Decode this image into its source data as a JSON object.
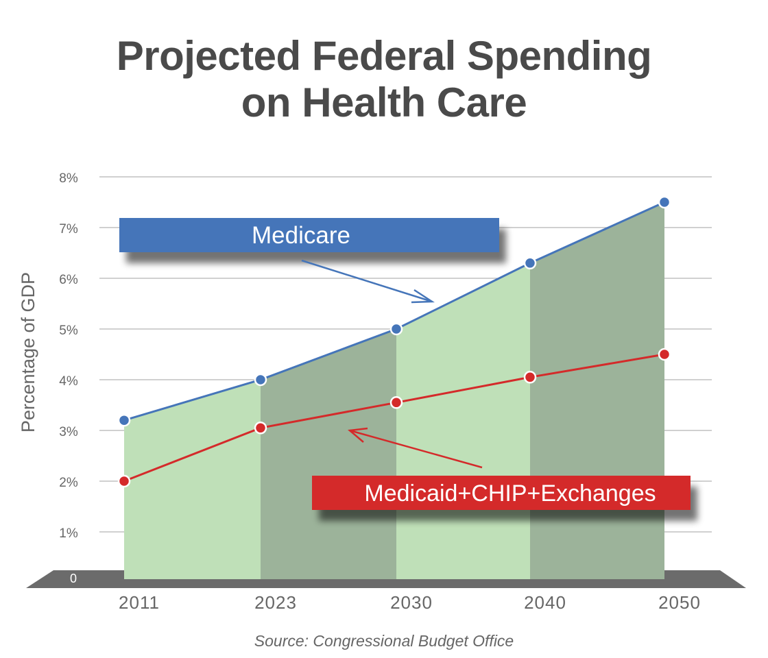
{
  "title_line1": "Projected Federal Spending",
  "title_line2": "on Health Care",
  "source": "Source: Congressional Budget Office",
  "chart_data": {
    "type": "area",
    "title": "Projected Federal Spending on Health Care",
    "ylabel": "Percentage of GDP",
    "xlabel": "",
    "categories": [
      "2011",
      "2023",
      "2030",
      "2040",
      "2050"
    ],
    "ylim": [
      0,
      8
    ],
    "y_ticks": [
      {
        "value": 0,
        "label": "0"
      },
      {
        "value": 1,
        "label": "1%"
      },
      {
        "value": 2,
        "label": "2%"
      },
      {
        "value": 3,
        "label": "3%"
      },
      {
        "value": 4,
        "label": "4%"
      },
      {
        "value": 5,
        "label": "5%"
      },
      {
        "value": 6,
        "label": "6%"
      },
      {
        "value": 7,
        "label": "7%"
      },
      {
        "value": 8,
        "label": "8%"
      }
    ],
    "grid": true,
    "series": [
      {
        "name": "Medicare",
        "values": [
          3.2,
          4.0,
          5.0,
          6.3,
          7.5
        ],
        "color": "#4575b9"
      },
      {
        "name": "Medicaid+CHIP+Exchanges",
        "values": [
          2.0,
          3.05,
          3.55,
          4.05,
          4.5
        ],
        "color": "#d42a2a"
      }
    ],
    "colors": {
      "area_light": "#bfe0b8",
      "area_dark": "#9cb39a",
      "floor": "#6b6b6b",
      "grid": "#b3b3b3",
      "axis_text": "#666666",
      "medicare_label_bg": "#4575b9",
      "medicaid_label_bg": "#d42a2a"
    }
  }
}
